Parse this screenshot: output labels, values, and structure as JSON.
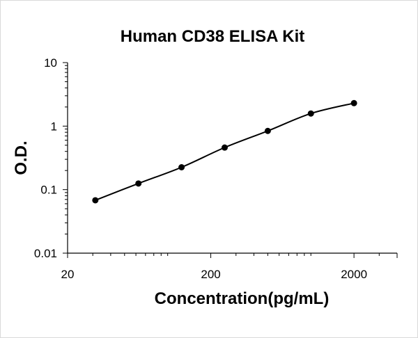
{
  "chart_data": {
    "type": "scatter",
    "title": "Human CD38 ELISA Kit",
    "xlabel": "Concentration(pg/mL)",
    "ylabel": "O.D.",
    "x_scale": "log",
    "y_scale": "log",
    "xlim": [
      20,
      4000
    ],
    "ylim": [
      0.01,
      10
    ],
    "x_ticks": [
      {
        "value": 20,
        "label": "20"
      },
      {
        "value": 200,
        "label": "200"
      },
      {
        "value": 2000,
        "label": "2000"
      }
    ],
    "y_ticks": [
      {
        "value": 10,
        "label": "10"
      },
      {
        "value": 1,
        "label": "1"
      },
      {
        "value": 0.1,
        "label": "0.1"
      },
      {
        "value": 0.01,
        "label": "0.01"
      }
    ],
    "grid": false,
    "legend": "none",
    "trendline": "smooth",
    "series": [
      {
        "x": [
          31.25,
          62.5,
          125,
          250,
          500,
          1000,
          2000
        ],
        "y": [
          0.068,
          0.125,
          0.225,
          0.46,
          0.84,
          1.58,
          2.3
        ]
      }
    ],
    "colors": {
      "marker": "#000000",
      "line": "#000000",
      "axis": "#000000"
    }
  }
}
